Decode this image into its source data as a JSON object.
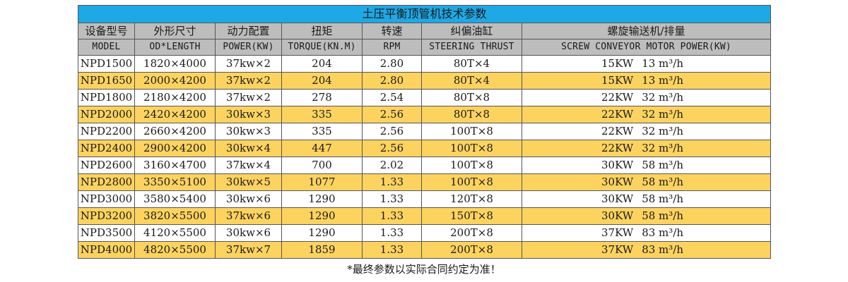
{
  "title": "土压平衡顶管机技术参数",
  "headers_cn": [
    "设备型号",
    "外形尺寸",
    "动力配置",
    "扭矩",
    "转速",
    "纠偏油缸",
    "螺旋输送机/排量"
  ],
  "headers_en": [
    "MODEL",
    "OD*LENGTH",
    "POWER(KW)",
    "TORQUE(KN.M)",
    "RPM",
    "STEERING THRUST",
    "SCREW CONVEYOR MOTOR POWER(KW)"
  ],
  "rows": [
    {
      "model": "NPD1500",
      "size": "1820×4000",
      "power": "37kw×2",
      "torque": "204",
      "rpm": "2.80",
      "steering": "80T×4",
      "conveyor_kw": "15KW",
      "conveyor_vol": "13 m³/h"
    },
    {
      "model": "NPD1650",
      "size": "2000×4200",
      "power": "37kw×2",
      "torque": "204",
      "rpm": "2.80",
      "steering": "80T×4",
      "conveyor_kw": "15KW",
      "conveyor_vol": "13 m³/h"
    },
    {
      "model": "NPD1800",
      "size": "2180×4200",
      "power": "37kw×2",
      "torque": "278",
      "rpm": "2.54",
      "steering": "80T×8",
      "conveyor_kw": "22KW",
      "conveyor_vol": "32 m³/h"
    },
    {
      "model": "NPD2000",
      "size": "2420×4200",
      "power": "30kw×3",
      "torque": "335",
      "rpm": "2.56",
      "steering": "80T×8",
      "conveyor_kw": "22KW",
      "conveyor_vol": "32 m³/h"
    },
    {
      "model": "NPD2200",
      "size": "2660×4200",
      "power": "30kw×3",
      "torque": "335",
      "rpm": "2.56",
      "steering": "100T×8",
      "conveyor_kw": "22KW",
      "conveyor_vol": "32 m³/h"
    },
    {
      "model": "NPD2400",
      "size": "2900×4200",
      "power": "30kw×4",
      "torque": "447",
      "rpm": "2.56",
      "steering": "100T×8",
      "conveyor_kw": "22KW",
      "conveyor_vol": "32 m³/h"
    },
    {
      "model": "NPD2600",
      "size": "3160×4700",
      "power": "37kw×4",
      "torque": "700",
      "rpm": "2.02",
      "steering": "100T×8",
      "conveyor_kw": "30KW",
      "conveyor_vol": "58 m³/h"
    },
    {
      "model": "NPD2800",
      "size": "3350×5100",
      "power": "30kw×5",
      "torque": "1077",
      "rpm": "1.33",
      "steering": "100T×8",
      "conveyor_kw": "30KW",
      "conveyor_vol": "58 m³/h"
    },
    {
      "model": "NPD3000",
      "size": "3580×5400",
      "power": "30kw×6",
      "torque": "1290",
      "rpm": "1.33",
      "steering": "120T×8",
      "conveyor_kw": "30KW",
      "conveyor_vol": "58 m³/h"
    },
    {
      "model": "NPD3200",
      "size": "3820×5500",
      "power": "37kw×6",
      "torque": "1290",
      "rpm": "1.33",
      "steering": "150T×8",
      "conveyor_kw": "30KW",
      "conveyor_vol": "58 m³/h"
    },
    {
      "model": "NPD3500",
      "size": "4120×5500",
      "power": "30kw×6",
      "torque": "1290",
      "rpm": "1.33",
      "steering": "200T×8",
      "conveyor_kw": "37KW",
      "conveyor_vol": "83 m³/h"
    },
    {
      "model": "NPD4000",
      "size": "4820×5500",
      "power": "37kw×7",
      "torque": "1859",
      "rpm": "1.33",
      "steering": "200T×8",
      "conveyor_kw": "37KW",
      "conveyor_vol": "83 m³/h"
    }
  ],
  "footnote": "*最终参数以实际合同约定为准！",
  "colors": {
    "title_bg": "#1ea8e6",
    "header_bg": "#bdbdbd",
    "highlight_row": "#fdd360",
    "row_bg": "#ffffff",
    "border": "#555555"
  }
}
